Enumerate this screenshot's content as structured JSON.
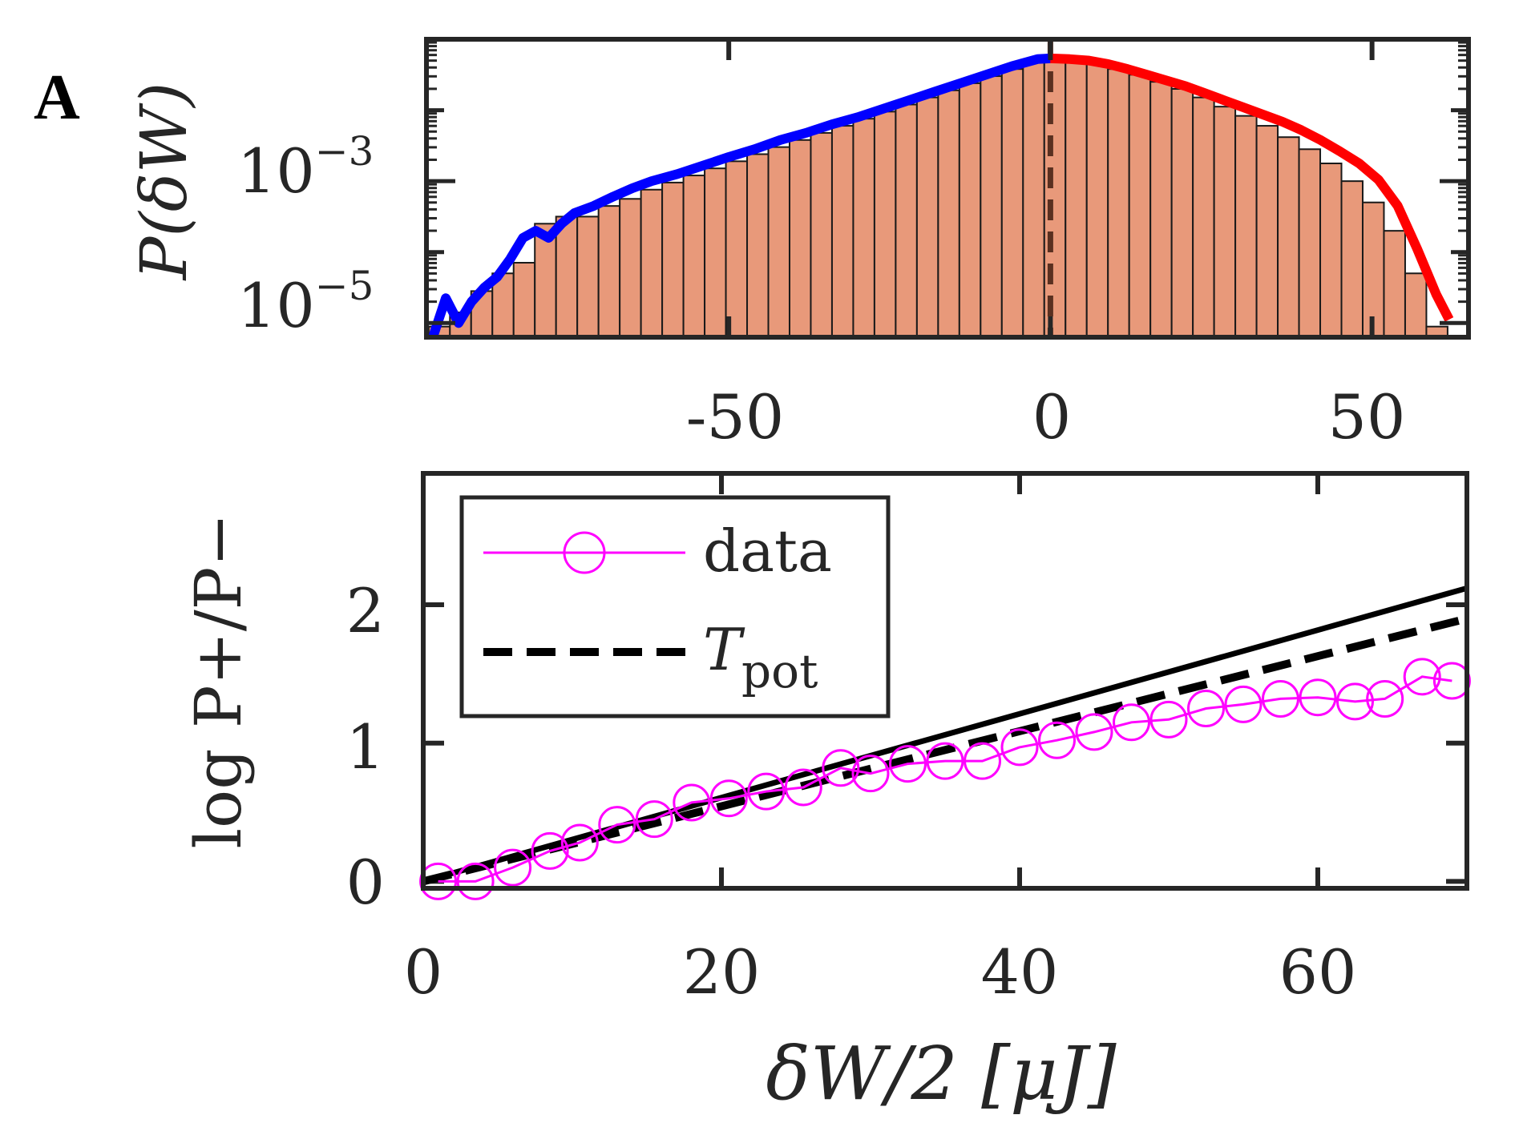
{
  "panel_label": "A",
  "chart_data": [
    {
      "type": "bar",
      "name": "work-distribution-histogram",
      "ylabel": "P(δW)",
      "yscale": "log",
      "xlim": [
        -97,
        65
      ],
      "ylim_log10": [
        -5.2,
        -1.0
      ],
      "xticks": [
        "-50",
        "0",
        "50"
      ],
      "xtick_values": [
        -50,
        0,
        50
      ],
      "ytick_base": "10",
      "yticks": [
        {
          "value": -3,
          "exponent": "−3"
        },
        {
          "value": -5,
          "exponent": "−5"
        }
      ],
      "bar_color": "#E8997A",
      "bin_width": 3.3,
      "bins": [
        {
          "x": -95,
          "log10p": -5.05
        },
        {
          "x": -91.7,
          "log10p": -4.85
        },
        {
          "x": -88.4,
          "log10p": -4.55
        },
        {
          "x": -85.1,
          "log10p": -4.3
        },
        {
          "x": -81.8,
          "log10p": -4.15
        },
        {
          "x": -78.5,
          "log10p": -3.6
        },
        {
          "x": -75.2,
          "log10p": -3.5
        },
        {
          "x": -71.9,
          "log10p": -3.5
        },
        {
          "x": -68.6,
          "log10p": -3.35
        },
        {
          "x": -65.3,
          "log10p": -3.25
        },
        {
          "x": -62,
          "log10p": -3.12
        },
        {
          "x": -58.7,
          "log10p": -3.02
        },
        {
          "x": -55.4,
          "log10p": -2.92
        },
        {
          "x": -52.1,
          "log10p": -2.82
        },
        {
          "x": -48.8,
          "log10p": -2.72
        },
        {
          "x": -45.5,
          "log10p": -2.62
        },
        {
          "x": -42.2,
          "log10p": -2.52
        },
        {
          "x": -38.9,
          "log10p": -2.42
        },
        {
          "x": -35.6,
          "log10p": -2.32
        },
        {
          "x": -32.3,
          "log10p": -2.22
        },
        {
          "x": -29,
          "log10p": -2.12
        },
        {
          "x": -25.7,
          "log10p": -2.02
        },
        {
          "x": -22.4,
          "log10p": -1.92
        },
        {
          "x": -19.1,
          "log10p": -1.82
        },
        {
          "x": -15.8,
          "log10p": -1.72
        },
        {
          "x": -12.5,
          "log10p": -1.62
        },
        {
          "x": -9.2,
          "log10p": -1.52
        },
        {
          "x": -5.9,
          "log10p": -1.42
        },
        {
          "x": -2.6,
          "log10p": -1.32
        },
        {
          "x": 0.7,
          "log10p": -1.28
        },
        {
          "x": 4,
          "log10p": -1.3
        },
        {
          "x": 7.3,
          "log10p": -1.35
        },
        {
          "x": 10.6,
          "log10p": -1.42
        },
        {
          "x": 13.9,
          "log10p": -1.5
        },
        {
          "x": 17.2,
          "log10p": -1.6
        },
        {
          "x": 20.5,
          "log10p": -1.7
        },
        {
          "x": 23.8,
          "log10p": -1.82
        },
        {
          "x": 27.1,
          "log10p": -1.95
        },
        {
          "x": 30.4,
          "log10p": -2.08
        },
        {
          "x": 33.7,
          "log10p": -2.22
        },
        {
          "x": 37,
          "log10p": -2.38
        },
        {
          "x": 40.3,
          "log10p": -2.55
        },
        {
          "x": 43.6,
          "log10p": -2.75
        },
        {
          "x": 46.9,
          "log10p": -3.0
        },
        {
          "x": 50.2,
          "log10p": -3.3
        },
        {
          "x": 53.5,
          "log10p": -3.7
        },
        {
          "x": 56.8,
          "log10p": -4.3
        },
        {
          "x": 60.1,
          "log10p": -5.05
        }
      ],
      "series": [
        {
          "name": "negative-branch",
          "color": "#0000FF",
          "x": [
            -96,
            -94,
            -92,
            -90,
            -88,
            -86,
            -84,
            -82,
            -80,
            -78,
            -76,
            -74,
            -71,
            -68,
            -65,
            -62,
            -58,
            -54,
            -50,
            -46,
            -42,
            -38,
            -34,
            -30,
            -26,
            -22,
            -18,
            -14,
            -10,
            -6,
            -2,
            0
          ],
          "log10p": [
            -5.2,
            -4.65,
            -5.0,
            -4.7,
            -4.5,
            -4.35,
            -4.1,
            -3.8,
            -3.7,
            -3.8,
            -3.6,
            -3.45,
            -3.35,
            -3.22,
            -3.1,
            -3.0,
            -2.9,
            -2.78,
            -2.66,
            -2.55,
            -2.42,
            -2.32,
            -2.2,
            -2.1,
            -1.98,
            -1.86,
            -1.74,
            -1.62,
            -1.5,
            -1.38,
            -1.28,
            -1.27
          ]
        },
        {
          "name": "positive-branch",
          "color": "#FF0000",
          "x": [
            0,
            3,
            6,
            9,
            12,
            15,
            18,
            21,
            24,
            27,
            30,
            33,
            36,
            39,
            42,
            45,
            48,
            51,
            54,
            57,
            60,
            62
          ],
          "log10p": [
            -1.27,
            -1.28,
            -1.3,
            -1.35,
            -1.42,
            -1.5,
            -1.58,
            -1.66,
            -1.76,
            -1.86,
            -1.96,
            -2.06,
            -2.16,
            -2.28,
            -2.42,
            -2.58,
            -2.75,
            -2.98,
            -3.35,
            -3.95,
            -4.6,
            -4.95
          ]
        }
      ],
      "zero_line": 0
    },
    {
      "type": "line",
      "name": "log-ratio-plot",
      "xlabel": "δW/2 [μJ]",
      "ylabel": "log P+/P−",
      "xlim": [
        0,
        70
      ],
      "ylim": [
        -0.05,
        2.95
      ],
      "xticks": [
        "0",
        "20",
        "40",
        "60"
      ],
      "xtick_values": [
        0,
        20,
        40,
        60
      ],
      "yticks": [
        "0",
        "1",
        "2"
      ],
      "ytick_values": [
        0,
        1,
        2
      ],
      "series": [
        {
          "name": "data",
          "color": "#FF00FF",
          "marker": "circle",
          "x": [
            1,
            3.5,
            6,
            8.5,
            10.5,
            13,
            15.5,
            18,
            20.5,
            23,
            25.5,
            28,
            30,
            32.5,
            35,
            37.5,
            40,
            42.5,
            45,
            47.5,
            50,
            52.5,
            55,
            57.5,
            60,
            62.5,
            64.5,
            67,
            69
          ],
          "y": [
            0.0,
            0.0,
            0.1,
            0.22,
            0.28,
            0.41,
            0.45,
            0.57,
            0.6,
            0.65,
            0.68,
            0.82,
            0.78,
            0.85,
            0.87,
            0.87,
            0.97,
            1.02,
            1.08,
            1.15,
            1.17,
            1.25,
            1.28,
            1.32,
            1.33,
            1.3,
            1.32,
            1.48,
            1.45
          ]
        },
        {
          "name": "fit-solid",
          "color": "#000000",
          "x": [
            0,
            70
          ],
          "y": [
            0.0,
            2.12
          ]
        },
        {
          "name": "T_pot",
          "color": "#000000",
          "dash": true,
          "x": [
            0,
            70
          ],
          "y": [
            0.0,
            1.9
          ]
        }
      ],
      "legend": {
        "placement": "top-left",
        "entries": [
          {
            "label": "data"
          },
          {
            "label_main": "T",
            "label_sub": "pot"
          }
        ]
      }
    }
  ]
}
